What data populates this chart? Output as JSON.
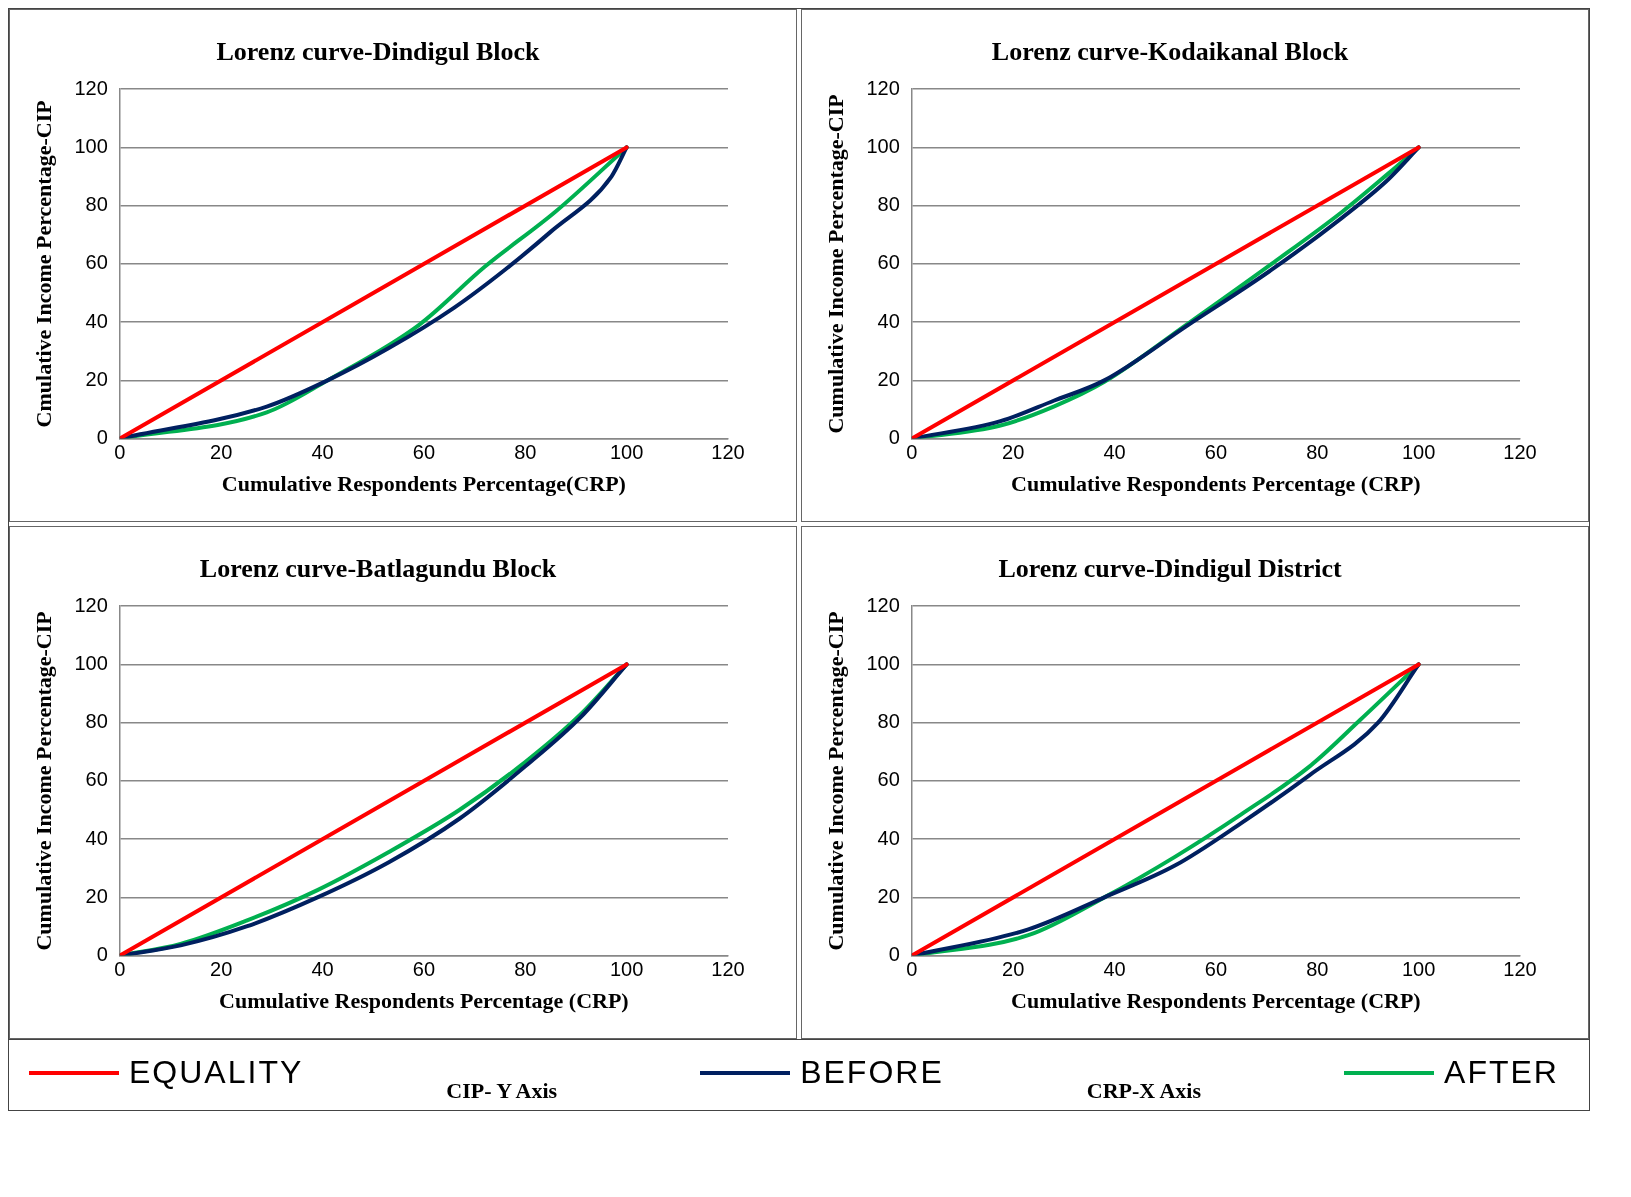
{
  "chart_data": [
    {
      "type": "line",
      "title": "Lorenz curve-Dindigul Block",
      "xlabel": "Cumulative Respondents Percentage(CRP)",
      "ylabel": "Cmulative Income Percentage-CIP",
      "xlim": [
        0,
        120
      ],
      "xticks": [
        0,
        20,
        40,
        60,
        80,
        100,
        120
      ],
      "ylim": [
        0,
        120
      ],
      "yticks": [
        0,
        20,
        40,
        60,
        80,
        100,
        120
      ],
      "grid": "y",
      "legend": "bottom",
      "marker": "none",
      "series": [
        {
          "name": "EQUALITY",
          "color": "#ff0000",
          "x": [
            0,
            100
          ],
          "values": [
            0,
            100
          ]
        },
        {
          "name": "BEFORE",
          "color": "#002060",
          "x": [
            0,
            29,
            41,
            53,
            66,
            76,
            85,
            97,
            100
          ],
          "values": [
            0,
            11,
            20,
            31,
            45,
            58,
            71,
            90,
            100
          ]
        },
        {
          "name": "AFTER",
          "color": "#00b050",
          "x": [
            0,
            29,
            41,
            59,
            72,
            86,
            100
          ],
          "values": [
            0,
            9,
            20,
            39,
            59,
            78,
            100
          ]
        }
      ]
    },
    {
      "type": "line",
      "title": "Lorenz curve-Kodaikanal Block",
      "xlabel": "Cumulative Respondents Percentage (CRP)",
      "ylabel": "Cumulative Income Percentage-CIP",
      "xlim": [
        0,
        120
      ],
      "xticks": [
        0,
        20,
        40,
        60,
        80,
        100,
        120
      ],
      "ylim": [
        0,
        120
      ],
      "yticks": [
        0,
        20,
        40,
        60,
        80,
        100,
        120
      ],
      "grid": "y",
      "marker": "none",
      "series": [
        {
          "color": "#ff0000",
          "x": [
            0,
            100
          ],
          "values": [
            0,
            100
          ]
        },
        {
          "color": "#002060",
          "x": [
            0,
            17.5,
            28,
            38,
            54.5,
            71,
            85,
            94,
            100
          ],
          "values": [
            0,
            6,
            13,
            20,
            39,
            58,
            76,
            89,
            100
          ]
        },
        {
          "color": "#00b050",
          "x": [
            0,
            17.5,
            28,
            38,
            54.5,
            71,
            85,
            94,
            100
          ],
          "values": [
            0,
            4.5,
            11,
            19.5,
            39.5,
            60,
            78,
            91,
            100
          ]
        }
      ]
    },
    {
      "type": "line",
      "title": "Lorenz curve-Batlagundu Block",
      "xlabel": "Cumulative Respondents Percentage (CRP)",
      "ylabel": "Cumulative Income Percentage-CIP",
      "xlim": [
        0,
        120
      ],
      "xticks": [
        0,
        20,
        40,
        60,
        80,
        100,
        120
      ],
      "ylim": [
        0,
        120
      ],
      "yticks": [
        0,
        20,
        40,
        60,
        80,
        100,
        120
      ],
      "grid": "y",
      "marker": "none",
      "series": [
        {
          "color": "#ff0000",
          "x": [
            0,
            100
          ],
          "values": [
            0,
            100
          ]
        },
        {
          "color": "#002060",
          "x": [
            0,
            12,
            25,
            39,
            53,
            67,
            80,
            91,
            100
          ],
          "values": [
            0,
            3.5,
            10,
            20,
            32,
            47,
            65,
            82,
            100
          ]
        },
        {
          "color": "#00b050",
          "x": [
            0,
            12,
            25,
            39,
            53,
            67,
            80,
            91,
            100
          ],
          "values": [
            0,
            4,
            12,
            22.5,
            35.5,
            50,
            66.5,
            83,
            100
          ]
        }
      ]
    },
    {
      "type": "line",
      "title": "Lorenz curve-Dindigul District",
      "xlabel": "Cumulative Respondents Percentage (CRP)",
      "ylabel": "Cumulative Income Percentage-CIP",
      "xlim": [
        0,
        120
      ],
      "xticks": [
        0,
        20,
        40,
        60,
        80,
        100,
        120
      ],
      "ylim": [
        0,
        120
      ],
      "yticks": [
        0,
        20,
        40,
        60,
        80,
        100,
        120
      ],
      "grid": "y",
      "marker": "none",
      "annotations": [
        "CIP- Y Axis",
        "CRP-X Axis"
      ],
      "series": [
        {
          "color": "#ff0000",
          "x": [
            0,
            100
          ],
          "values": [
            0,
            100
          ]
        },
        {
          "color": "#002060",
          "x": [
            0,
            23,
            38,
            52,
            65,
            78.5,
            92,
            100
          ],
          "values": [
            0,
            9,
            20,
            31,
            45.5,
            62,
            80,
            100
          ]
        },
        {
          "color": "#00b050",
          "x": [
            0,
            23,
            38,
            52,
            65,
            78.5,
            88.5,
            100
          ],
          "values": [
            0,
            7,
            20,
            34,
            48.5,
            65,
            81,
            100
          ]
        }
      ]
    }
  ]
}
